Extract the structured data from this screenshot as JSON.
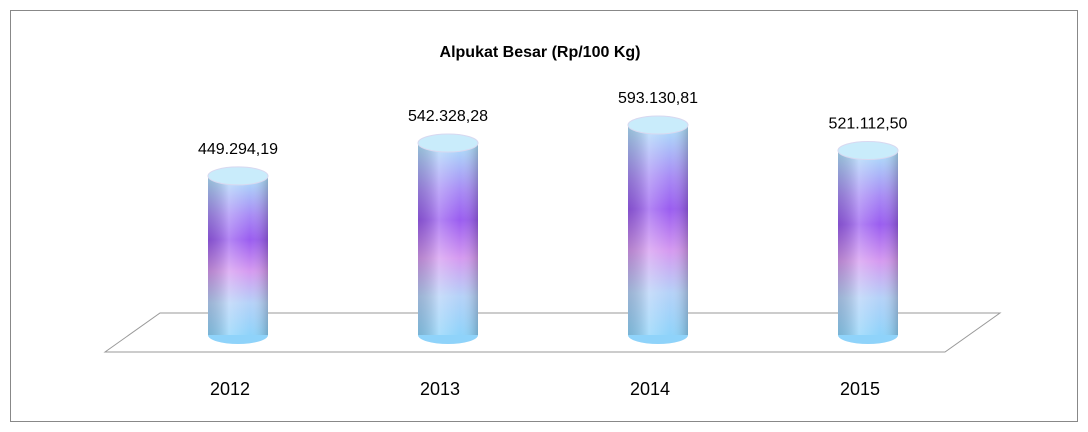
{
  "chart_data": {
    "type": "bar",
    "title": "Alpukat Besar (Rp/100 Kg)",
    "categories": [
      "2012",
      "2013",
      "2014",
      "2015"
    ],
    "values": [
      449294.19,
      542328.28,
      593130.81,
      521112.5
    ],
    "value_labels": [
      "449.294,19",
      "542.328,28",
      "593.130,81",
      "521.112,50"
    ]
  }
}
